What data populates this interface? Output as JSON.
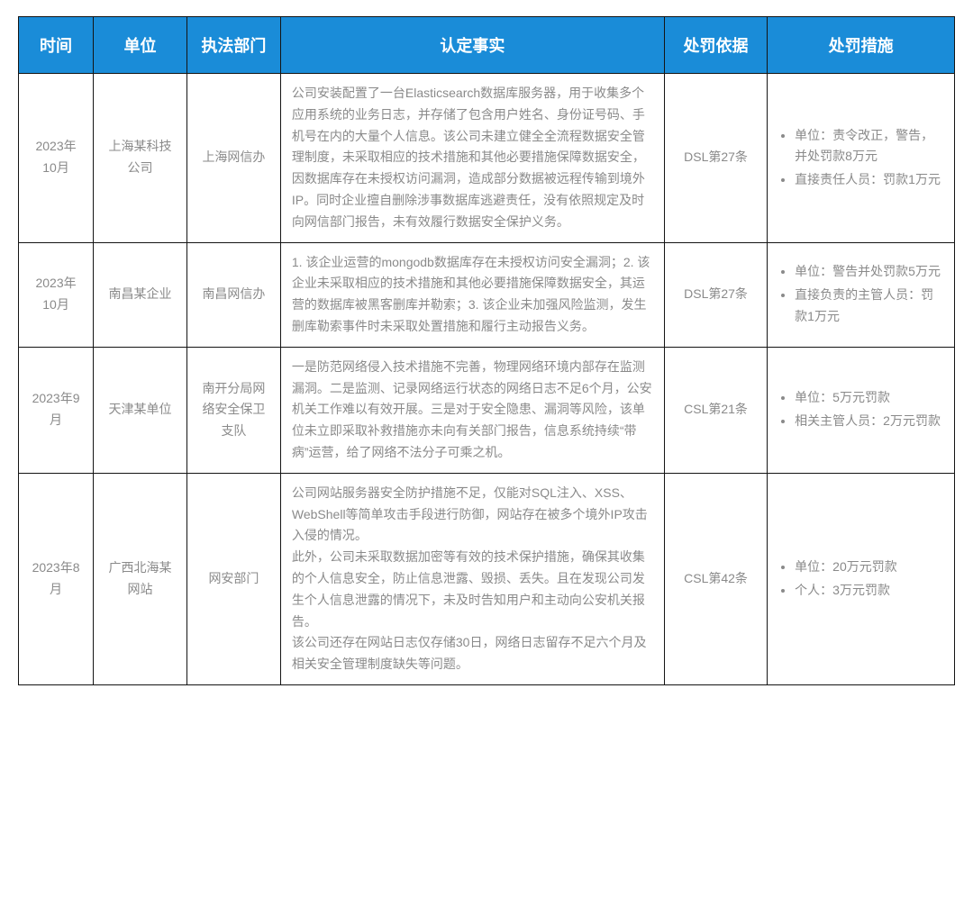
{
  "header_bg": "#1a8cd8",
  "header_fg": "#ffffff",
  "border_color": "#141414",
  "text_color": "#8a8a8a",
  "columns": [
    "时间",
    "单位",
    "执法部门",
    "认定事实",
    "处罚依据",
    "处罚措施"
  ],
  "rows": [
    {
      "time": "2023年10月",
      "unit": "上海某科技公司",
      "dept": "上海网信办",
      "fact": "公司安装配置了一台Elasticsearch数据库服务器，用于收集多个应用系统的业务日志，并存储了包含用户姓名、身份证号码、手机号在内的大量个人信息。该公司未建立健全全流程数据安全管理制度，未采取相应的技术措施和其他必要措施保障数据安全，因数据库存在未授权访问漏洞，造成部分数据被远程传输到境外IP。同时企业擅自删除涉事数据库逃避责任，没有依照规定及时向网信部门报告，未有效履行数据安全保护义务。",
      "basis": "DSL第27条",
      "measures": [
        "单位：责令改正，警告，并处罚款8万元",
        "直接责任人员：罚款1万元"
      ]
    },
    {
      "time": "2023年10月",
      "unit": "南昌某企业",
      "dept": "南昌网信办",
      "fact": "1. 该企业运营的mongodb数据库存在未授权访问安全漏洞；2. 该企业未采取相应的技术措施和其他必要措施保障数据安全，其运营的数据库被黑客删库并勒索；3. 该企业未加强风险监测，发生删库勒索事件时未采取处置措施和履行主动报告义务。",
      "basis": "DSL第27条",
      "measures": [
        "单位：警告并处罚款5万元",
        "直接负责的主管人员：罚款1万元"
      ]
    },
    {
      "time": "2023年9月",
      "unit": "天津某单位",
      "dept": "南开分局网络安全保卫支队",
      "fact": "一是防范网络侵入技术措施不完善，物理网络环境内部存在监测漏洞。二是监测、记录网络运行状态的网络日志不足6个月，公安机关工作难以有效开展。三是对于安全隐患、漏洞等风险，该单位未立即采取补救措施亦未向有关部门报告，信息系统持续“带病”运营，给了网络不法分子可乘之机。",
      "basis": "CSL第21条",
      "measures": [
        "单位：5万元罚款",
        "相关主管人员：2万元罚款"
      ]
    },
    {
      "time": "2023年8月",
      "unit": "广西北海某网站",
      "dept": "网安部门",
      "fact": "公司网站服务器安全防护措施不足，仅能对SQL注入、XSS、WebShell等简单攻击手段进行防御，网站存在被多个境外IP攻击入侵的情况。\n此外，公司未采取数据加密等有效的技术保护措施，确保其收集的个人信息安全，防止信息泄露、毁损、丢失。且在发现公司发生个人信息泄露的情况下，未及时告知用户和主动向公安机关报告。\n该公司还存在网站日志仅存储30日，网络日志留存不足六个月及相关安全管理制度缺失等问题。",
      "basis": "CSL第42条",
      "measures": [
        "单位：20万元罚款",
        "个人：3万元罚款"
      ]
    }
  ]
}
